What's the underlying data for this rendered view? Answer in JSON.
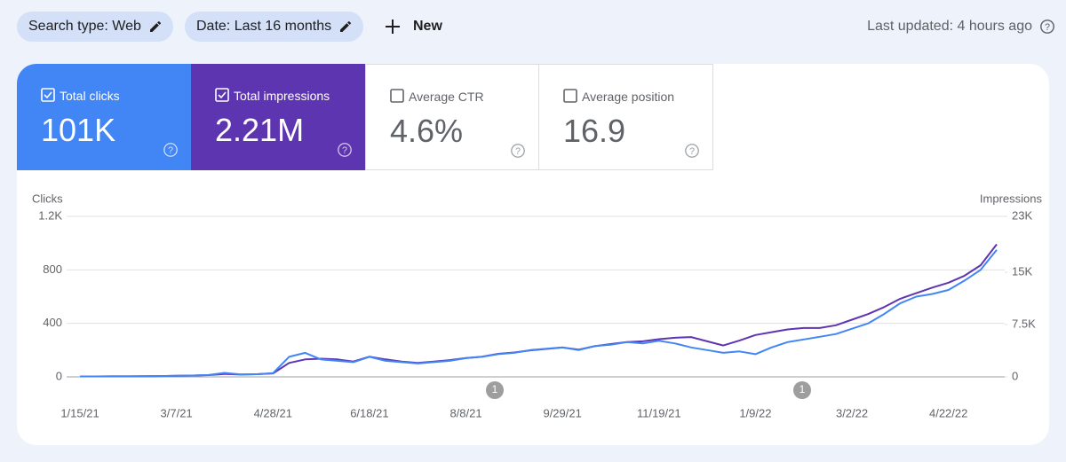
{
  "header": {
    "chips": [
      "Search type: Web",
      "Date: Last 16 months"
    ],
    "new_button": "New",
    "last_updated": "Last updated: 4 hours ago"
  },
  "metrics": [
    {
      "label": "Total clicks",
      "value": "101K"
    },
    {
      "label": "Total impressions",
      "value": "2.21M"
    },
    {
      "label": "Average CTR",
      "value": "4.6%"
    },
    {
      "label": "Average position",
      "value": "16.9"
    }
  ],
  "chart_data": {
    "type": "line",
    "ylabel": "Clicks",
    "y2label": "Impressions",
    "categories": [
      "1/15/21",
      null,
      null,
      null,
      null,
      null,
      "3/7/21",
      null,
      null,
      null,
      null,
      null,
      "4/28/21",
      null,
      null,
      null,
      null,
      null,
      "6/18/21",
      null,
      null,
      null,
      null,
      null,
      "8/8/21",
      null,
      null,
      null,
      null,
      null,
      "9/29/21",
      null,
      null,
      null,
      null,
      null,
      "11/19/21",
      null,
      null,
      null,
      null,
      null,
      "1/9/22",
      null,
      null,
      null,
      null,
      null,
      "3/2/22",
      null,
      null,
      null,
      null,
      null,
      "4/22/22",
      null,
      null,
      null
    ],
    "series": [
      {
        "name": "Clicks",
        "color": "#4285f4",
        "values": [
          3,
          3,
          4,
          4,
          5,
          6,
          8,
          10,
          14,
          30,
          18,
          20,
          28,
          150,
          180,
          130,
          120,
          110,
          150,
          120,
          110,
          100,
          110,
          120,
          140,
          150,
          170,
          180,
          200,
          210,
          220,
          200,
          230,
          240,
          260,
          250,
          270,
          250,
          220,
          200,
          180,
          190,
          170,
          220,
          260,
          280,
          300,
          320,
          360,
          400,
          470,
          550,
          600,
          620,
          650,
          720,
          800,
          950
        ]
      },
      {
        "name": "Impressions",
        "color": "#5e35b1",
        "axis": "y2",
        "values": [
          60,
          60,
          70,
          80,
          90,
          110,
          150,
          190,
          250,
          420,
          330,
          380,
          500,
          2000,
          2500,
          2600,
          2500,
          2200,
          2900,
          2500,
          2200,
          2000,
          2200,
          2400,
          2700,
          2900,
          3300,
          3500,
          3800,
          4000,
          4200,
          3900,
          4400,
          4700,
          5000,
          5100,
          5400,
          5600,
          5700,
          5100,
          4500,
          5200,
          6000,
          6400,
          6800,
          7000,
          7000,
          7400,
          8200,
          9000,
          10000,
          11200,
          12000,
          12800,
          13500,
          14500,
          16000,
          19000
        ]
      }
    ],
    "ylim": [
      0,
      1200
    ],
    "yticks": [
      0,
      400,
      800,
      {
        "value": 1200,
        "label": "1.2K"
      }
    ],
    "y2lim": [
      0,
      23000
    ],
    "y2ticks": [
      0,
      {
        "value": 7500,
        "label": "7.5K"
      },
      {
        "value": 15000,
        "label": "15K"
      },
      {
        "value": 23000,
        "label": "23K"
      }
    ],
    "grid": true,
    "annotations": [
      "1",
      "1"
    ]
  }
}
